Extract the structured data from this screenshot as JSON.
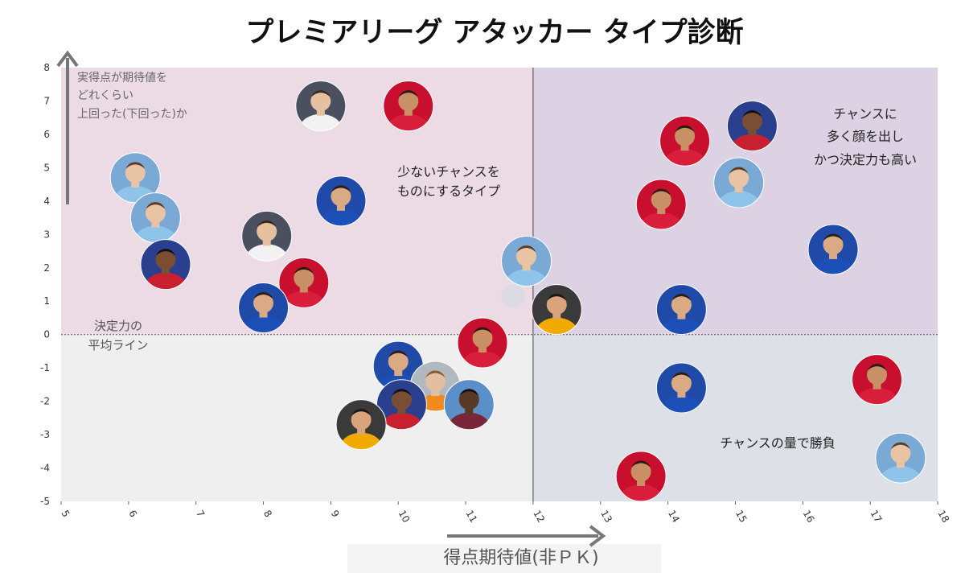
{
  "chart_data": {
    "type": "scatter",
    "title": "プレミアリーグ アタッカー タイプ診断",
    "xlabel": "得点期待値(非ＰＫ)",
    "ylabel_lines": [
      "実得点が期待値を",
      "どれくらい",
      "上回った(下回った)か"
    ],
    "xlim": [
      5,
      18
    ],
    "ylim": [
      -5,
      8
    ],
    "x_ticks": [
      "5",
      "6",
      "7",
      "8",
      "9",
      "10",
      "11",
      "12",
      "13",
      "14",
      "15",
      "16",
      "17",
      "18"
    ],
    "y_ticks": [
      "8",
      "7",
      "6",
      "5",
      "4",
      "3",
      "2",
      "1",
      "0",
      "-1",
      "-2",
      "-3",
      "-4",
      "-5"
    ],
    "average_line_label": [
      "決定力の",
      "平均ライン"
    ],
    "quadrant_labels": {
      "upper_left": [
        "少ないチャンスを",
        "ものにするタイプ"
      ],
      "upper_right": [
        "チャンスに",
        "多く顔を出し",
        "かつ決定力も高い"
      ],
      "lower_right": [
        "チャンスの量で勝負"
      ]
    },
    "grid": false,
    "colors": {
      "upper_left_bg": "#ecdbe4",
      "upper_right_bg": "#ddd2e4",
      "lower_left_bg": "#efefef",
      "lower_right_bg": "#dde0e7",
      "arrow": "#777777"
    },
    "points": [
      {
        "x": 6.1,
        "y": 4.7,
        "kit": "skyblue"
      },
      {
        "x": 6.4,
        "y": 3.5,
        "kit": "skyblue"
      },
      {
        "x": 6.55,
        "y": 2.1,
        "kit": "redblue"
      },
      {
        "x": 8.85,
        "y": 6.85,
        "kit": "white"
      },
      {
        "x": 10.15,
        "y": 6.85,
        "kit": "red"
      },
      {
        "x": 9.15,
        "y": 4.0,
        "kit": "blue"
      },
      {
        "x": 8.05,
        "y": 2.95,
        "kit": "white"
      },
      {
        "x": 8.6,
        "y": 1.55,
        "kit": "red"
      },
      {
        "x": 8.0,
        "y": 0.8,
        "kit": "blue"
      },
      {
        "x": 11.9,
        "y": 2.2,
        "kit": "skyblue"
      },
      {
        "x": 12.35,
        "y": 0.75,
        "kit": "gold"
      },
      {
        "x": 11.25,
        "y": -0.25,
        "kit": "red"
      },
      {
        "x": 10.0,
        "y": -0.95,
        "kit": "blue"
      },
      {
        "x": 10.55,
        "y": -1.55,
        "kit": "orange"
      },
      {
        "x": 10.05,
        "y": -2.1,
        "kit": "redblue"
      },
      {
        "x": 11.05,
        "y": -2.1,
        "kit": "claret"
      },
      {
        "x": 9.45,
        "y": -2.7,
        "kit": "gold"
      },
      {
        "x": 14.25,
        "y": 5.8,
        "kit": "red"
      },
      {
        "x": 15.25,
        "y": 6.25,
        "kit": "redblue"
      },
      {
        "x": 15.05,
        "y": 4.55,
        "kit": "skyblue"
      },
      {
        "x": 13.9,
        "y": 3.9,
        "kit": "red"
      },
      {
        "x": 16.45,
        "y": 2.55,
        "kit": "blue"
      },
      {
        "x": 14.2,
        "y": 0.75,
        "kit": "blue"
      },
      {
        "x": 14.2,
        "y": -1.6,
        "kit": "blue"
      },
      {
        "x": 17.1,
        "y": -1.35,
        "kit": "red"
      },
      {
        "x": 17.45,
        "y": -3.7,
        "kit": "skyblue"
      },
      {
        "x": 13.6,
        "y": -4.25,
        "kit": "red"
      }
    ]
  }
}
